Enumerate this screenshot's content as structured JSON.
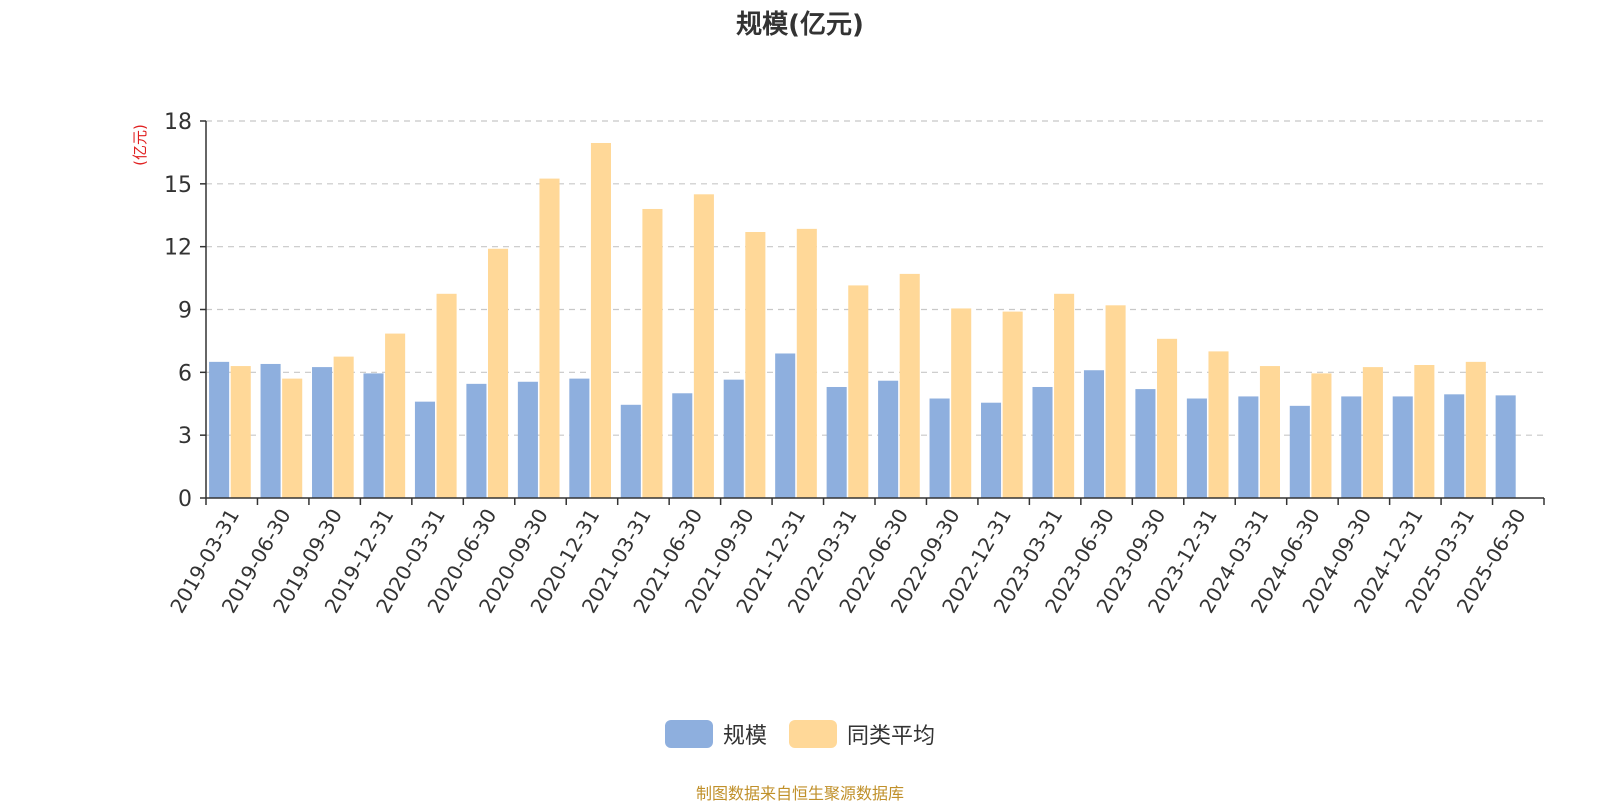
{
  "chart_data": {
    "type": "bar",
    "title": "规模(亿元)",
    "ylabel": "(亿元)",
    "ylim": [
      0,
      18
    ],
    "yticks": [
      0,
      3,
      6,
      9,
      12,
      15,
      18
    ],
    "grid": true,
    "legend_position": "bottom",
    "categories": [
      "2019-03-31",
      "2019-06-30",
      "2019-09-30",
      "2019-12-31",
      "2020-03-31",
      "2020-06-30",
      "2020-09-30",
      "2020-12-31",
      "2021-03-31",
      "2021-06-30",
      "2021-09-30",
      "2021-12-31",
      "2022-03-31",
      "2022-06-30",
      "2022-09-30",
      "2022-12-31",
      "2023-03-31",
      "2023-06-30",
      "2023-09-30",
      "2023-12-31",
      "2024-03-31",
      "2024-06-30",
      "2024-09-30",
      "2024-12-31",
      "2025-03-31",
      "2025-06-30"
    ],
    "series": [
      {
        "name": "规模",
        "color": "#8eafde",
        "values": [
          6.5,
          6.4,
          6.25,
          5.95,
          4.6,
          5.45,
          5.55,
          5.7,
          4.45,
          5.0,
          5.65,
          6.9,
          5.3,
          5.6,
          4.75,
          4.55,
          5.3,
          6.1,
          5.2,
          4.75,
          4.85,
          4.4,
          4.85,
          4.85,
          4.95,
          4.9
        ]
      },
      {
        "name": "同类平均",
        "color": "#ffd898",
        "values": [
          6.3,
          5.7,
          6.75,
          7.85,
          9.75,
          11.9,
          15.25,
          16.95,
          13.8,
          14.5,
          12.7,
          12.85,
          10.15,
          10.7,
          9.05,
          8.9,
          9.75,
          9.2,
          7.6,
          7.0,
          6.3,
          5.95,
          6.25,
          6.35,
          6.5,
          null
        ]
      }
    ]
  },
  "footer": "制图数据来自恒生聚源数据库"
}
